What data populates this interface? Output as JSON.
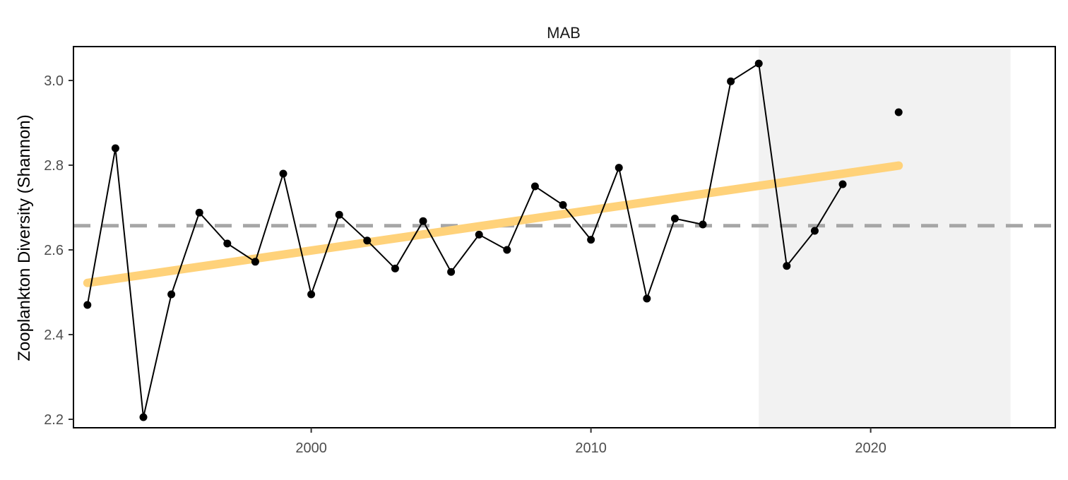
{
  "chart_data": {
    "type": "line",
    "title": "MAB",
    "xlabel": "",
    "ylabel": "Zooplankton Diversity (Shannon)",
    "xlim": [
      1991.5,
      2026.6
    ],
    "ylim": [
      2.18,
      3.08
    ],
    "x_ticks": [
      2000,
      2010,
      2020
    ],
    "x_tick_labels": [
      "2000",
      "2010",
      "2020"
    ],
    "y_ticks": [
      2.2,
      2.4,
      2.6,
      2.8,
      3.0
    ],
    "y_tick_labels": [
      "2.2",
      "2.4",
      "2.6",
      "2.8",
      "3.0"
    ],
    "grid": false,
    "legend": "none",
    "shaded_region": {
      "x_start": 2016,
      "x_end": 2025,
      "color": "#f2f2f2"
    },
    "reference_line": {
      "y": 2.657,
      "style": "dashed",
      "color": "#a6a6a6"
    },
    "trend_line": {
      "x": [
        1992,
        2021
      ],
      "y": [
        2.522,
        2.799
      ],
      "color": "#ffd27a"
    },
    "series": [
      {
        "x": [
          1992,
          1993,
          1994,
          1995,
          1996,
          1997,
          1998,
          1999,
          2000,
          2001,
          2002,
          2003,
          2004,
          2005,
          2006,
          2007,
          2008,
          2009,
          2010,
          2011,
          2012,
          2013,
          2014,
          2015,
          2016,
          2017,
          2018,
          2019
        ],
        "y": [
          2.47,
          2.84,
          2.205,
          2.495,
          2.688,
          2.615,
          2.572,
          2.78,
          2.495,
          2.683,
          2.622,
          2.556,
          2.668,
          2.548,
          2.636,
          2.6,
          2.75,
          2.706,
          2.624,
          2.794,
          2.485,
          2.674,
          2.66,
          2.998,
          3.04,
          2.562,
          2.645,
          2.755
        ]
      },
      {
        "x": [
          2021
        ],
        "y": [
          2.925
        ]
      }
    ]
  }
}
